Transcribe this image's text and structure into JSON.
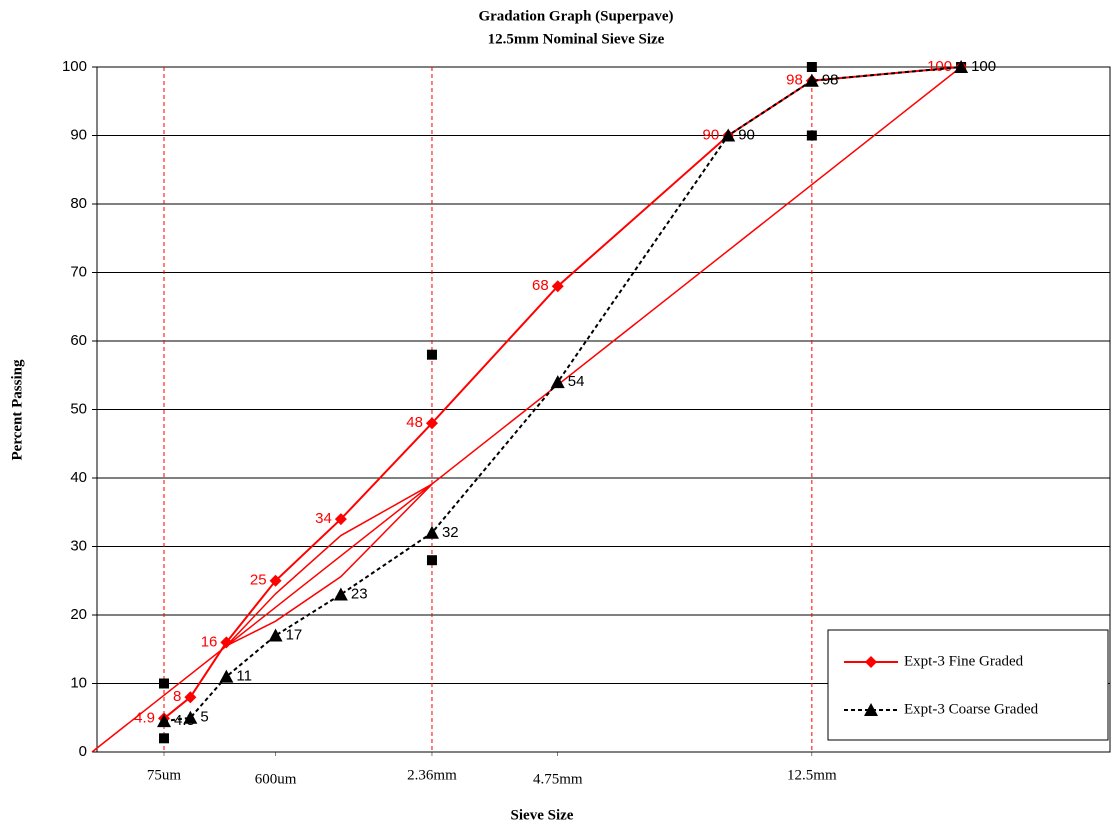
{
  "chart_data": {
    "type": "line",
    "title": "Gradation Graph (Superpave)",
    "subtitle": "12.5mm Nominal Sieve Size",
    "x_label": "Sieve Size",
    "y_label": "Percent Passing",
    "xscale": "power",
    "xexponent": 0.45,
    "xlim": [
      0,
      27
    ],
    "ylim": [
      0,
      100
    ],
    "yticks": [
      0,
      10,
      20,
      30,
      40,
      50,
      60,
      70,
      80,
      90,
      100
    ],
    "xticks": [
      {
        "value": 0.075,
        "label": "75um"
      },
      {
        "value": 0.6,
        "label": "600um"
      },
      {
        "value": 2.36,
        "label": "2.36mm"
      },
      {
        "value": 4.75,
        "label": "4.75mm"
      },
      {
        "value": 12.5,
        "label": "12.5mm"
      }
    ],
    "vlines": [
      0.075,
      2.36,
      12.5
    ],
    "vline_color": "#ff0000",
    "grid": true,
    "legend": "lower right",
    "series": [
      {
        "x": [
          0,
          19
        ],
        "values": [
          0,
          100
        ],
        "color": "#ff0000",
        "line": "solid",
        "marker": null,
        "width": 1.5
      },
      {
        "x": [
          0.3,
          0.6,
          1.18,
          2.36
        ],
        "values": [
          15.5,
          23.1,
          31.6,
          39.1
        ],
        "color": "#ff0000",
        "line": "solid",
        "marker": null,
        "width": 1.5
      },
      {
        "x": [
          0.3,
          0.6,
          1.18,
          2.36
        ],
        "values": [
          15.5,
          19.1,
          25.6,
          39.1
        ],
        "color": "#ff0000",
        "line": "solid",
        "marker": null,
        "width": 1.5
      },
      {
        "x": [
          0.075,
          0.075,
          2.36,
          2.36,
          12.5,
          12.5,
          19
        ],
        "values": [
          2,
          10,
          28,
          58,
          90,
          100,
          100
        ],
        "color": "#000000",
        "line": null,
        "marker": "square"
      },
      {
        "name": "Expt-3 Fine Graded",
        "x": [
          0.075,
          0.15,
          0.3,
          0.6,
          1.18,
          2.36,
          4.75,
          9.5,
          12.5,
          19
        ],
        "values": [
          4.9,
          8,
          16,
          25,
          34,
          48,
          68,
          90,
          98,
          100
        ],
        "color": "#ff0000",
        "line": "solid",
        "marker": "diamond",
        "width": 2,
        "labels": "left"
      },
      {
        "name": "Expt-3  Coarse Graded",
        "x": [
          0.075,
          0.15,
          0.3,
          0.6,
          1.18,
          2.36,
          4.75,
          9.5,
          12.5,
          19
        ],
        "values": [
          4.5,
          5,
          11,
          17,
          23,
          32,
          54,
          90,
          98,
          100
        ],
        "color": "#000000",
        "line": "dashed",
        "marker": "triangle",
        "width": 2,
        "labels": "right"
      }
    ]
  }
}
